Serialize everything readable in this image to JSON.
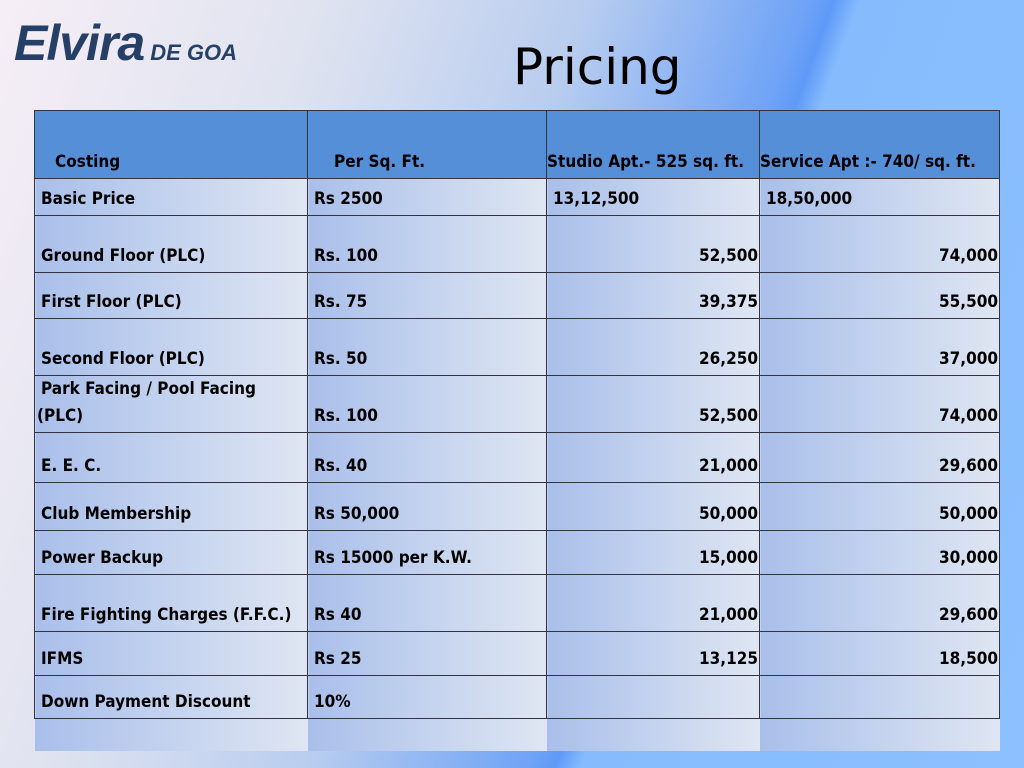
{
  "logo": {
    "name": "Elvira",
    "suffix": "DE GOA"
  },
  "title": "Pricing",
  "table": {
    "headers": [
      "Costing",
      "Per Sq. Ft.",
      "Studio Apt.- 525  sq. ft.",
      "Service Apt :- 740/     sq. ft."
    ],
    "rows": [
      [
        "Basic Price",
        "Rs 2500",
        "13,12,500",
        "18,50,000"
      ],
      [
        "Ground Floor     (PLC)",
        "Rs. 100",
        "52,500",
        "74,000"
      ],
      [
        "First Floor (PLC)",
        "Rs.  75",
        "39,375",
        "55,500"
      ],
      [
        "Second Floor (PLC)",
        "Rs.  50",
        "26,250",
        "37,000"
      ],
      [
        "Park Facing / Pool Facing (PLC)",
        "Rs. 100",
        "52,500",
        "74,000"
      ],
      [
        "E. E. C.",
        "Rs.  40",
        "21,000",
        "29,600"
      ],
      [
        "Club Membership",
        "Rs 50,000",
        "50,000",
        "50,000"
      ],
      [
        "Power Backup",
        "Rs 15000 per K.W.",
        "15,000",
        "30,000"
      ],
      [
        "Fire Fighting  Charges (F.F.C.)",
        "Rs 40",
        "21,000",
        "29,600"
      ],
      [
        "IFMS",
        "Rs 25",
        "13,125",
        "18,500"
      ],
      [
        "Down Payment Discount",
        "10%",
        "",
        ""
      ]
    ]
  }
}
